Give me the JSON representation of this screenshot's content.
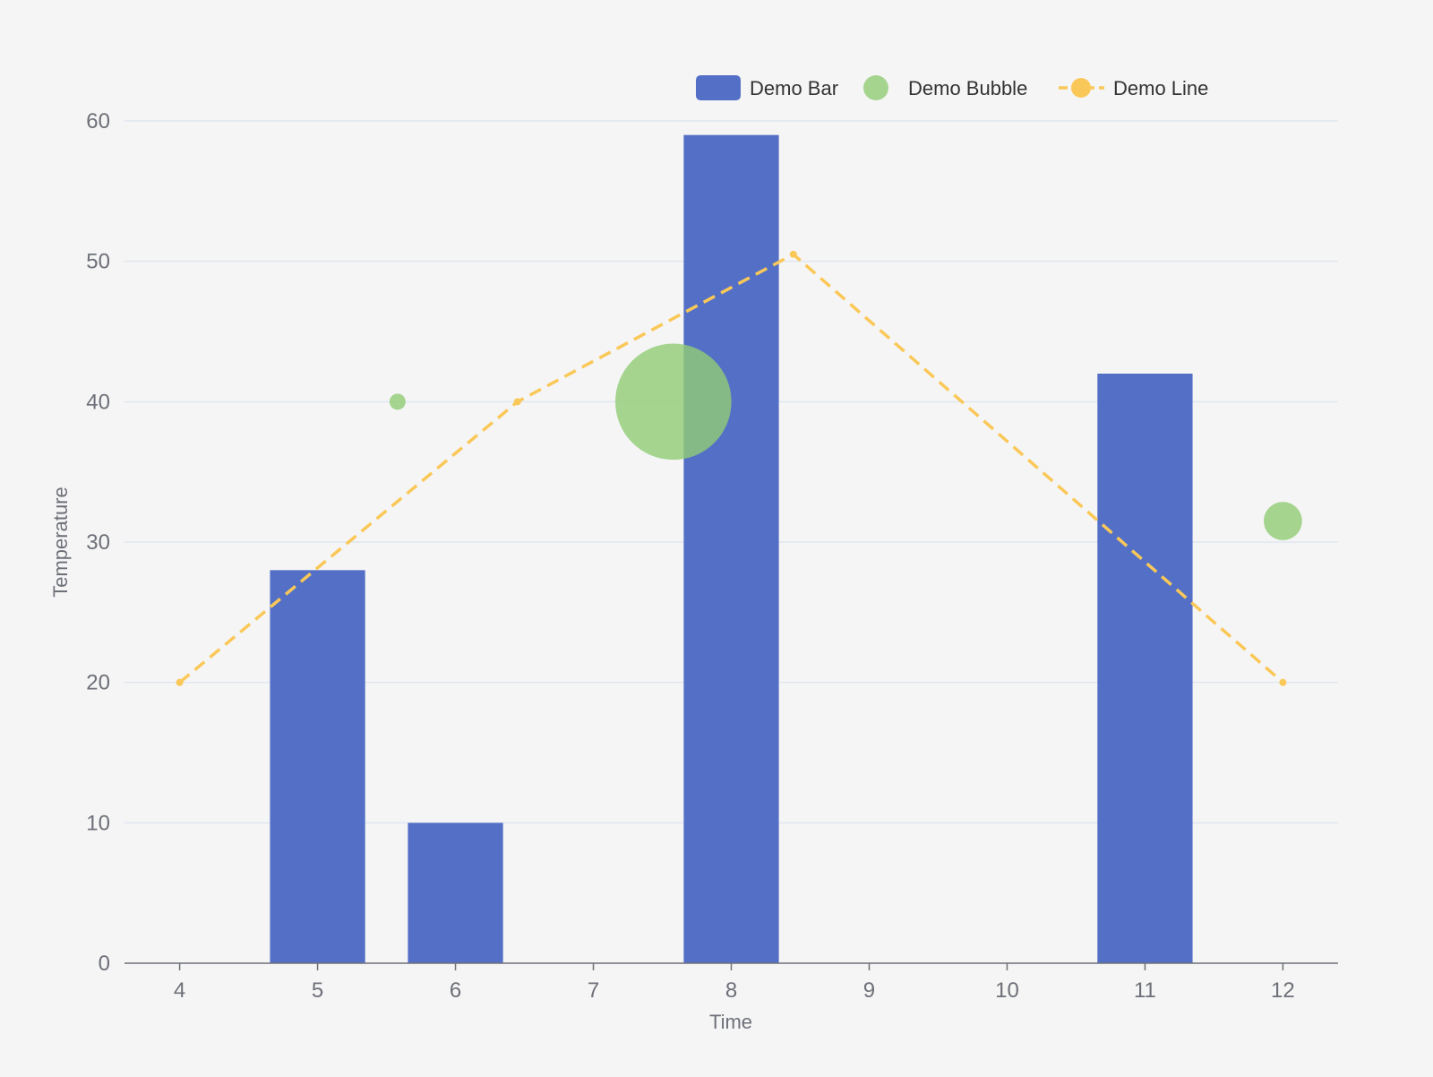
{
  "chart_data": {
    "type": "bar",
    "xlabel": "Time",
    "ylabel": "Temperature",
    "x_ticks": [
      "4",
      "5",
      "6",
      "7",
      "8",
      "9",
      "10",
      "11",
      "12"
    ],
    "y_ticks": [
      "0",
      "10",
      "20",
      "30",
      "40",
      "50",
      "60"
    ],
    "xlim": [
      3.6,
      12.4
    ],
    "ylim": [
      0,
      60
    ],
    "grid": true,
    "legend_position": "top-right",
    "series": [
      {
        "name": "Demo Bar",
        "type": "bar",
        "color": "#5470c6",
        "points": [
          {
            "x": 5,
            "y": 28
          },
          {
            "x": 6,
            "y": 10
          },
          {
            "x": 8,
            "y": 59
          },
          {
            "x": 11,
            "y": 42
          }
        ]
      },
      {
        "name": "Demo Bubble",
        "type": "scatter",
        "color": "#91cc75",
        "points": [
          {
            "x": 5.58,
            "y": 40,
            "size": 1
          },
          {
            "x": 7.58,
            "y": 40,
            "size": 10
          },
          {
            "x": 12,
            "y": 31.5,
            "size": 3
          }
        ]
      },
      {
        "name": "Demo Line",
        "type": "line",
        "style": "dashed",
        "color": "#fac858",
        "points": [
          {
            "x": 4,
            "y": 20
          },
          {
            "x": 6.45,
            "y": 40
          },
          {
            "x": 8.45,
            "y": 50.5
          },
          {
            "x": 12,
            "y": 20
          }
        ]
      }
    ]
  }
}
